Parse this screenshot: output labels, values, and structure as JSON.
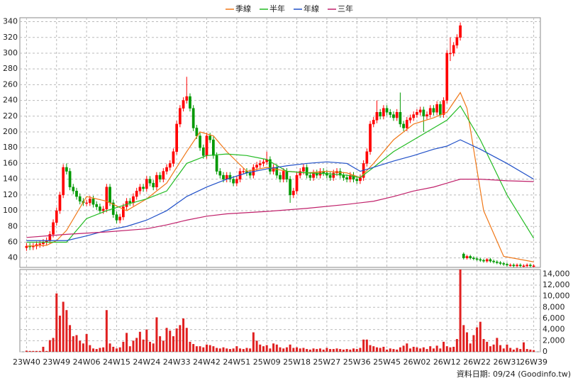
{
  "chart_data": [
    {
      "type": "candlestick",
      "xlim": [
        -2,
        154
      ],
      "ylim": [
        28,
        345
      ],
      "yticks": [
        40,
        60,
        80,
        100,
        120,
        140,
        160,
        180,
        200,
        220,
        240,
        260,
        280,
        300,
        320,
        340
      ],
      "grid": true,
      "legend": "top",
      "up_color": "#ff0000",
      "down_color": "#009900",
      "open": [
        53,
        55,
        54,
        55,
        57,
        58,
        60,
        62,
        70,
        85,
        100,
        120,
        155,
        150,
        130,
        125,
        118,
        112,
        110,
        110,
        115,
        108,
        105,
        100,
        102,
        130,
        110,
        95,
        88,
        92,
        105,
        112,
        110,
        118,
        125,
        130,
        128,
        140,
        135,
        130,
        145,
        140,
        150,
        155,
        160,
        175,
        210,
        230,
        240,
        245,
        230,
        205,
        195,
        180,
        170,
        195,
        190,
        170,
        150,
        145,
        140,
        145,
        140,
        135,
        140,
        150,
        150,
        148,
        145,
        155,
        158,
        160,
        162,
        165,
        150,
        155,
        145,
        140,
        150,
        140,
        120,
        125,
        145,
        150,
        155,
        145,
        142,
        148,
        145,
        150,
        148,
        145,
        142,
        148,
        150,
        145,
        142,
        140,
        145,
        140,
        138,
        142,
        160,
        175,
        210,
        215,
        225,
        220,
        230,
        225,
        222,
        218,
        225,
        210,
        205,
        215,
        218,
        222,
        225,
        228,
        220,
        222,
        230,
        225,
        235,
        222,
        240,
        300,
        300,
        310,
        320,
        45,
        40,
        42,
        40,
        39,
        38,
        37,
        36,
        38,
        36,
        35,
        34,
        33,
        32,
        31,
        31,
        30,
        31,
        30,
        30,
        31,
        30
      ],
      "high": [
        59,
        59,
        59,
        61,
        62,
        64,
        66,
        74,
        89,
        104,
        124,
        159,
        160,
        154,
        134,
        129,
        122,
        116,
        114,
        119,
        119,
        112,
        109,
        106,
        134,
        134,
        114,
        99,
        96,
        109,
        116,
        116,
        122,
        129,
        134,
        134,
        144,
        144,
        139,
        149,
        149,
        154,
        159,
        164,
        179,
        214,
        234,
        244,
        270,
        249,
        234,
        209,
        199,
        184,
        199,
        199,
        194,
        174,
        154,
        149,
        149,
        149,
        144,
        144,
        154,
        154,
        154,
        152,
        159,
        162,
        164,
        166,
        175,
        169,
        159,
        159,
        149,
        154,
        154,
        144,
        129,
        149,
        154,
        159,
        159,
        149,
        152,
        152,
        154,
        154,
        152,
        149,
        152,
        154,
        154,
        149,
        146,
        149,
        149,
        144,
        146,
        164,
        179,
        214,
        219,
        240,
        229,
        234,
        234,
        229,
        226,
        229,
        250,
        214,
        219,
        222,
        226,
        229,
        232,
        232,
        226,
        234,
        234,
        239,
        239,
        244,
        304,
        320,
        314,
        324,
        339,
        47,
        44,
        44,
        42,
        41,
        40,
        39,
        40,
        40,
        38,
        37,
        36,
        35,
        34,
        33,
        33,
        33,
        33,
        32,
        33,
        33,
        32
      ],
      "low": [
        49,
        50,
        50,
        51,
        53,
        54,
        56,
        58,
        66,
        81,
        96,
        116,
        146,
        126,
        121,
        114,
        108,
        106,
        106,
        106,
        104,
        101,
        96,
        96,
        98,
        106,
        91,
        84,
        84,
        88,
        101,
        106,
        106,
        114,
        121,
        124,
        124,
        131,
        126,
        126,
        136,
        136,
        146,
        151,
        156,
        171,
        206,
        226,
        236,
        226,
        201,
        191,
        176,
        166,
        166,
        186,
        166,
        146,
        141,
        136,
        136,
        136,
        131,
        131,
        136,
        146,
        144,
        141,
        141,
        151,
        154,
        156,
        158,
        146,
        146,
        141,
        136,
        136,
        136,
        110,
        116,
        121,
        141,
        146,
        141,
        138,
        138,
        141,
        141,
        144,
        141,
        138,
        138,
        144,
        141,
        138,
        136,
        136,
        136,
        134,
        134,
        138,
        156,
        171,
        206,
        211,
        216,
        216,
        221,
        218,
        214,
        214,
        206,
        201,
        201,
        211,
        214,
        218,
        221,
        200,
        216,
        218,
        221,
        221,
        218,
        218,
        236,
        290,
        296,
        306,
        316,
        38,
        38,
        38,
        37,
        36,
        35,
        34,
        34,
        34,
        33,
        32,
        31,
        30,
        29,
        29,
        28,
        28,
        28,
        28,
        28,
        28,
        28
      ],
      "close": [
        55,
        54,
        55,
        57,
        58,
        60,
        62,
        70,
        85,
        100,
        120,
        155,
        150,
        130,
        125,
        118,
        112,
        110,
        110,
        115,
        108,
        105,
        100,
        102,
        130,
        110,
        95,
        88,
        92,
        105,
        112,
        110,
        118,
        125,
        130,
        128,
        140,
        135,
        130,
        145,
        140,
        150,
        155,
        160,
        175,
        210,
        230,
        240,
        245,
        230,
        205,
        195,
        180,
        170,
        195,
        190,
        170,
        150,
        145,
        140,
        145,
        140,
        135,
        140,
        150,
        150,
        148,
        145,
        155,
        158,
        160,
        162,
        165,
        150,
        155,
        145,
        140,
        150,
        140,
        120,
        125,
        145,
        150,
        155,
        145,
        142,
        148,
        145,
        150,
        148,
        145,
        142,
        148,
        150,
        145,
        142,
        140,
        145,
        140,
        138,
        142,
        160,
        175,
        210,
        215,
        225,
        220,
        230,
        225,
        222,
        218,
        225,
        210,
        205,
        215,
        218,
        222,
        225,
        228,
        220,
        222,
        230,
        225,
        235,
        222,
        240,
        300,
        300,
        310,
        320,
        335,
        40,
        42,
        40,
        39,
        38,
        37,
        36,
        38,
        36,
        35,
        34,
        33,
        32,
        31,
        31,
        30,
        31,
        30,
        30,
        31,
        30,
        30
      ],
      "series": [
        {
          "name": "季線",
          "color": "#f07818",
          "x": [
            0,
            6,
            9,
            12,
            18,
            24,
            30,
            36,
            42,
            48,
            52,
            56,
            60,
            66,
            72,
            78,
            84,
            90,
            96,
            100,
            104,
            110,
            116,
            122,
            126,
            130,
            132,
            137,
            143,
            152
          ],
          "values": [
            55,
            56,
            62,
            75,
            118,
            112,
            100,
            115,
            135,
            175,
            200,
            195,
            175,
            150,
            155,
            150,
            148,
            150,
            148,
            142,
            160,
            190,
            210,
            218,
            225,
            250,
            230,
            100,
            42,
            35
          ]
        },
        {
          "name": "半年",
          "color": "#22bb22",
          "x": [
            0,
            12,
            18,
            24,
            30,
            36,
            42,
            48,
            54,
            60,
            66,
            72,
            78,
            84,
            90,
            96,
            100,
            104,
            110,
            116,
            122,
            126,
            130,
            136,
            144,
            152
          ],
          "values": [
            60,
            60,
            90,
            100,
            108,
            115,
            125,
            160,
            170,
            172,
            170,
            165,
            150,
            148,
            147,
            145,
            142,
            155,
            175,
            190,
            205,
            215,
            233,
            190,
            120,
            65
          ]
        },
        {
          "name": "年線",
          "color": "#2050c8",
          "x": [
            0,
            12,
            18,
            24,
            30,
            36,
            42,
            48,
            54,
            60,
            66,
            72,
            78,
            84,
            90,
            96,
            100,
            104,
            110,
            116,
            122,
            126,
            130,
            136,
            144,
            152
          ],
          "values": [
            62,
            62,
            68,
            75,
            80,
            88,
            100,
            118,
            130,
            140,
            148,
            153,
            157,
            160,
            162,
            160,
            150,
            155,
            163,
            170,
            178,
            182,
            190,
            178,
            160,
            140
          ]
        },
        {
          "name": "三年",
          "color": "#c0206a",
          "x": [
            0,
            12,
            24,
            36,
            42,
            48,
            54,
            60,
            72,
            84,
            96,
            104,
            110,
            116,
            122,
            126,
            130,
            136,
            144,
            152
          ],
          "values": [
            66,
            70,
            73,
            77,
            82,
            88,
            93,
            96,
            99,
            103,
            108,
            112,
            118,
            125,
            130,
            135,
            140,
            140,
            138,
            137
          ]
        }
      ]
    },
    {
      "type": "bar",
      "color": "#e02020",
      "xlim": [
        -2,
        154
      ],
      "ylim": [
        0,
        14800
      ],
      "yticks": [
        0,
        {
          "value": 2000,
          "label": "2,000"
        },
        {
          "value": 4000,
          "label": "4,000"
        },
        {
          "value": 6000,
          "label": "6,000"
        },
        {
          "value": 8000,
          "label": "8,000"
        },
        {
          "value": 10000,
          "label": "10,000"
        },
        {
          "value": 12000,
          "label": "12,000"
        },
        {
          "value": 14000,
          "label": "14,000"
        }
      ],
      "xticks": [
        {
          "value": 0,
          "label": "23W40"
        },
        {
          "value": 9,
          "label": "23W49"
        },
        {
          "value": 18,
          "label": "24W06"
        },
        {
          "value": 27,
          "label": "24W15"
        },
        {
          "value": 36,
          "label": "24W24"
        },
        {
          "value": 45,
          "label": "24W33"
        },
        {
          "value": 54,
          "label": "24W42"
        },
        {
          "value": 63,
          "label": "24W51"
        },
        {
          "value": 72,
          "label": "25W09"
        },
        {
          "value": 81,
          "label": "25W18"
        },
        {
          "value": 90,
          "label": "25W27"
        },
        {
          "value": 99,
          "label": "25W36"
        },
        {
          "value": 108,
          "label": "25W45"
        },
        {
          "value": 117,
          "label": "26W02"
        },
        {
          "value": 126,
          "label": "26W12"
        },
        {
          "value": 135,
          "label": "26W22"
        },
        {
          "value": 144,
          "label": "26W31"
        },
        {
          "value": 152,
          "label": "26W39"
        }
      ],
      "grid": true,
      "values": [
        200,
        150,
        150,
        150,
        150,
        900,
        150,
        2100,
        2500,
        10500,
        6500,
        9000,
        7500,
        4800,
        2800,
        3000,
        2000,
        1500,
        3200,
        1200,
        600,
        500,
        700,
        800,
        7500,
        1500,
        900,
        600,
        800,
        1800,
        3400,
        1000,
        2000,
        2500,
        3600,
        2200,
        4000,
        1800,
        1500,
        6200,
        2800,
        2000,
        4300,
        3800,
        2800,
        4200,
        4800,
        6000,
        4300,
        1800,
        1400,
        1000,
        1000,
        800,
        1300,
        1200,
        1000,
        700,
        600,
        800,
        600,
        500,
        600,
        1000,
        600,
        500,
        700,
        600,
        3500,
        2000,
        1300,
        1000,
        1200,
        600,
        1500,
        1300,
        800,
        600,
        800,
        1300,
        700,
        800,
        600,
        700,
        500,
        400,
        600,
        500,
        600,
        400,
        700,
        500,
        500,
        600,
        500,
        400,
        500,
        400,
        600,
        500,
        700,
        2200,
        2200,
        1200,
        1000,
        800,
        700,
        900,
        400,
        600,
        500,
        400,
        800,
        1100,
        1500,
        600,
        900,
        800,
        600,
        800,
        500,
        1000,
        600,
        1100,
        600,
        1800,
        1000,
        800,
        900,
        2300,
        14800,
        4800,
        3500,
        1500,
        3000,
        4400,
        5400,
        2300,
        1800,
        1000,
        1300,
        2500,
        1200,
        600,
        1300,
        700,
        400,
        700,
        500,
        1700,
        500,
        400,
        300
      ]
    }
  ],
  "footer": "資料日期: 09/24  (Goodinfo.tw)"
}
